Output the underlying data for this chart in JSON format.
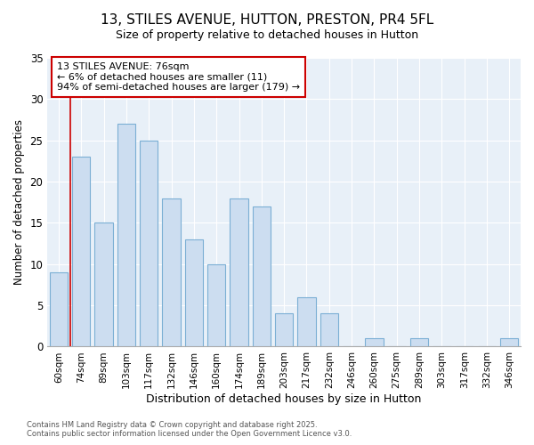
{
  "title_line1": "13, STILES AVENUE, HUTTON, PRESTON, PR4 5FL",
  "title_line2": "Size of property relative to detached houses in Hutton",
  "xlabel": "Distribution of detached houses by size in Hutton",
  "ylabel": "Number of detached properties",
  "categories": [
    "60sqm",
    "74sqm",
    "89sqm",
    "103sqm",
    "117sqm",
    "132sqm",
    "146sqm",
    "160sqm",
    "174sqm",
    "189sqm",
    "203sqm",
    "217sqm",
    "232sqm",
    "246sqm",
    "260sqm",
    "275sqm",
    "289sqm",
    "303sqm",
    "317sqm",
    "332sqm",
    "346sqm"
  ],
  "values": [
    9,
    23,
    15,
    27,
    25,
    18,
    13,
    10,
    18,
    17,
    4,
    6,
    4,
    0,
    1,
    0,
    1,
    0,
    0,
    0,
    1
  ],
  "bar_color": "#ccddf0",
  "bar_edge_color": "#7bafd4",
  "ylim": [
    0,
    35
  ],
  "yticks": [
    0,
    5,
    10,
    15,
    20,
    25,
    30,
    35
  ],
  "vline_index": 1,
  "vline_color": "#cc0000",
  "annotation_title": "13 STILES AVENUE: 76sqm",
  "annotation_line2": "← 6% of detached houses are smaller (11)",
  "annotation_line3": "94% of semi-detached houses are larger (179) →",
  "annotation_box_color": "#cc0000",
  "footer_line1": "Contains HM Land Registry data © Crown copyright and database right 2025.",
  "footer_line2": "Contains public sector information licensed under the Open Government Licence v3.0.",
  "background_color": "#ffffff",
  "plot_bg_color": "#e8f0f8",
  "grid_color": "#ffffff",
  "title_fontsize": 11,
  "subtitle_fontsize": 9,
  "bar_width": 0.8
}
